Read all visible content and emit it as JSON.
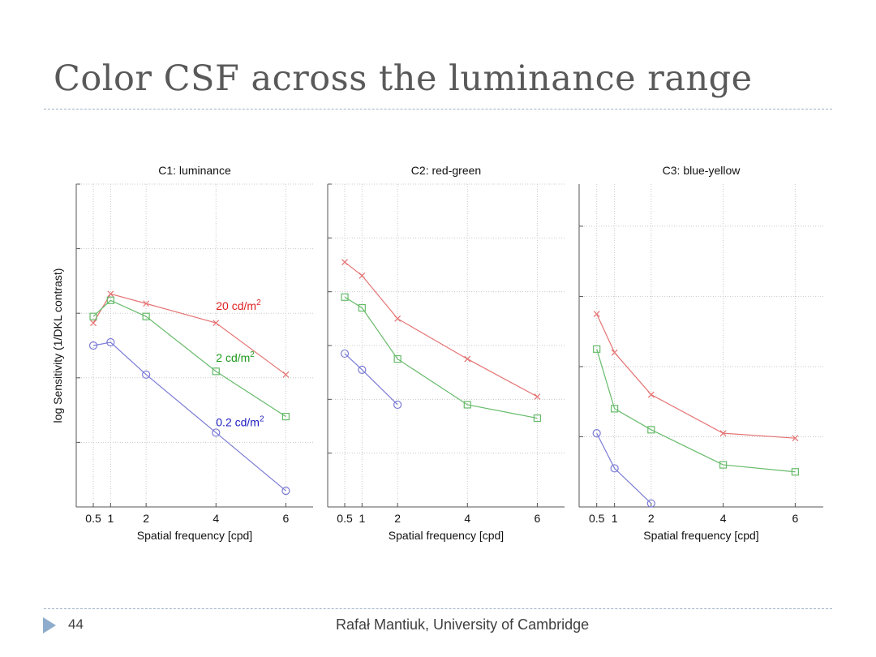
{
  "slide": {
    "title": "Color CSF across the luminance range",
    "page_number": "44",
    "footer": "Rafał Mantiuk, University of Cambridge"
  },
  "chart_data": [
    {
      "type": "line",
      "title": "C1: luminance",
      "xlabel": "Spatial frequency [cpd]",
      "ylabel": "log Sensitivity (1/DKL contrast)",
      "x_ticks": [
        "0.5",
        "1",
        "2",
        "4",
        "6"
      ],
      "xlim": [
        0,
        6.5
      ],
      "ylim": [
        0,
        5
      ],
      "grid": true,
      "annotations": [
        {
          "text": "20 cd/m",
          "sup": "2",
          "color": "#e02020",
          "x": 4,
          "y": 3.05
        },
        {
          "text": "2 cd/m",
          "sup": "2",
          "color": "#1f9a1f",
          "x": 4,
          "y": 2.25
        },
        {
          "text": "0.2 cd/m",
          "sup": "2",
          "color": "#2020c0",
          "x": 4,
          "y": 1.25
        }
      ],
      "series": [
        {
          "name": "20 cd/m2",
          "color": "#e57373",
          "marker": "x",
          "x": [
            0.5,
            1,
            2,
            4,
            6
          ],
          "y": [
            2.85,
            3.3,
            3.15,
            2.85,
            2.05
          ]
        },
        {
          "name": "2 cd/m2",
          "color": "#66bb6a",
          "marker": "square",
          "x": [
            0.5,
            1,
            2,
            4,
            6
          ],
          "y": [
            2.95,
            3.2,
            2.95,
            2.1,
            1.4
          ]
        },
        {
          "name": "0.2 cd/m2",
          "color": "#7b7bd6",
          "marker": "circle",
          "x": [
            0.5,
            1,
            2,
            4,
            6
          ],
          "y": [
            2.5,
            2.55,
            2.05,
            1.15,
            0.25
          ]
        }
      ]
    },
    {
      "type": "line",
      "title": "C2: red-green",
      "xlabel": "Spatial frequency [cpd]",
      "x_ticks": [
        "0.5",
        "1",
        "2",
        "4",
        "6"
      ],
      "xlim": [
        0,
        6.5
      ],
      "ylim": [
        0,
        6
      ],
      "grid": true,
      "series": [
        {
          "name": "20 cd/m2",
          "color": "#e57373",
          "marker": "x",
          "x": [
            0.5,
            1,
            2,
            4,
            6
          ],
          "y": [
            4.55,
            4.3,
            3.5,
            2.75,
            2.05
          ]
        },
        {
          "name": "2 cd/m2",
          "color": "#66bb6a",
          "marker": "square",
          "x": [
            0.5,
            1,
            2,
            4,
            6
          ],
          "y": [
            3.9,
            3.7,
            2.75,
            1.9,
            1.65
          ]
        },
        {
          "name": "0.2 cd/m2",
          "color": "#7b7bd6",
          "marker": "circle",
          "x": [
            0.5,
            1,
            2
          ],
          "y": [
            2.85,
            2.55,
            1.9
          ]
        }
      ]
    },
    {
      "type": "line",
      "title": "C3: blue-yellow",
      "xlabel": "Spatial frequency [cpd]",
      "x_ticks": [
        "0.5",
        "1",
        "2",
        "4",
        "6"
      ],
      "xlim": [
        0,
        6.5
      ],
      "ylim": [
        0,
        4.6
      ],
      "grid": true,
      "series": [
        {
          "name": "20 cd/m2",
          "color": "#e57373",
          "marker": "x",
          "x": [
            0.5,
            1,
            2,
            4,
            6
          ],
          "y": [
            2.75,
            2.2,
            1.6,
            1.05,
            0.98
          ]
        },
        {
          "name": "2 cd/m2",
          "color": "#66bb6a",
          "marker": "square",
          "x": [
            0.5,
            1,
            2,
            4,
            6
          ],
          "y": [
            2.25,
            1.4,
            1.1,
            0.6,
            0.5
          ]
        },
        {
          "name": "0.2 cd/m2",
          "color": "#7b7bd6",
          "marker": "circle",
          "x": [
            0.5,
            1,
            2
          ],
          "y": [
            1.05,
            0.55,
            0.05
          ]
        }
      ]
    }
  ]
}
